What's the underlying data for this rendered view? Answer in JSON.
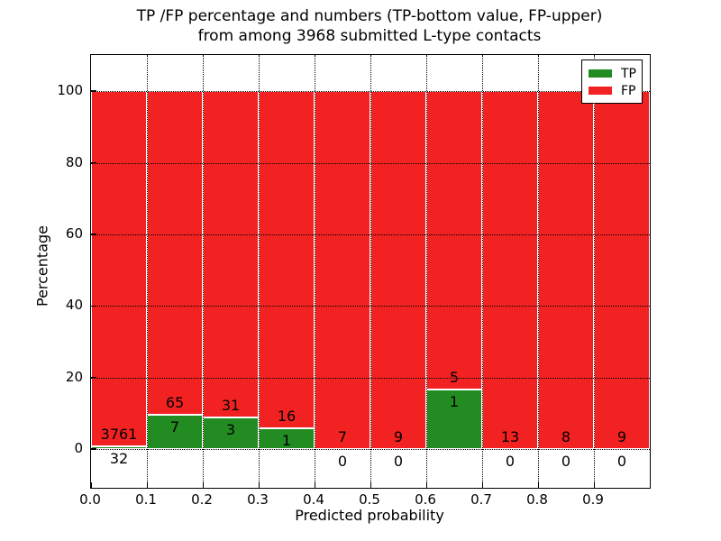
{
  "figure": {
    "title_line1": "TP /FP percentage and numbers (TP-bottom value, FP-upper)",
    "title_line2": "from among 3968 submitted L-type contacts"
  },
  "chart_data": {
    "type": "bar",
    "stacked": true,
    "normalized": "each bin scaled to 100%, counts shown as labels",
    "title": "TP /FP percentage and numbers (TP-bottom value, FP-upper)\nfrom among 3968 submitted L-type contacts",
    "xlabel": "Predicted probability",
    "ylabel": "Percentage",
    "total_contacts": 3968,
    "bin_width": 0.1,
    "categories": [
      "0.0-0.1",
      "0.1-0.2",
      "0.2-0.3",
      "0.3-0.4",
      "0.4-0.5",
      "0.5-0.6",
      "0.6-0.7",
      "0.7-0.8",
      "0.8-0.9",
      "0.9-1.0"
    ],
    "series": [
      {
        "name": "TP",
        "color": "#228b22",
        "counts": [
          32,
          7,
          3,
          1,
          0,
          0,
          1,
          0,
          0,
          0
        ]
      },
      {
        "name": "FP",
        "color": "#f22222",
        "counts": [
          3761,
          65,
          31,
          16,
          7,
          9,
          5,
          13,
          8,
          9
        ]
      }
    ],
    "tp_percent_of_bin": [
      0.8,
      9.7,
      8.8,
      5.9,
      0.0,
      0.0,
      16.7,
      0.0,
      0.0,
      0.0
    ],
    "xticks": [
      "0.0",
      "0.1",
      "0.2",
      "0.3",
      "0.4",
      "0.5",
      "0.6",
      "0.7",
      "0.8",
      "0.9"
    ],
    "yticks": [
      0,
      20,
      40,
      60,
      80,
      100
    ],
    "ylim": [
      -10.8,
      110.1
    ],
    "grid": "dotted, both axes, drawn over bars",
    "legend": {
      "position": "upper right",
      "entries": [
        {
          "label": "TP",
          "color": "#228b22"
        },
        {
          "label": "FP",
          "color": "#f22222"
        }
      ]
    }
  }
}
